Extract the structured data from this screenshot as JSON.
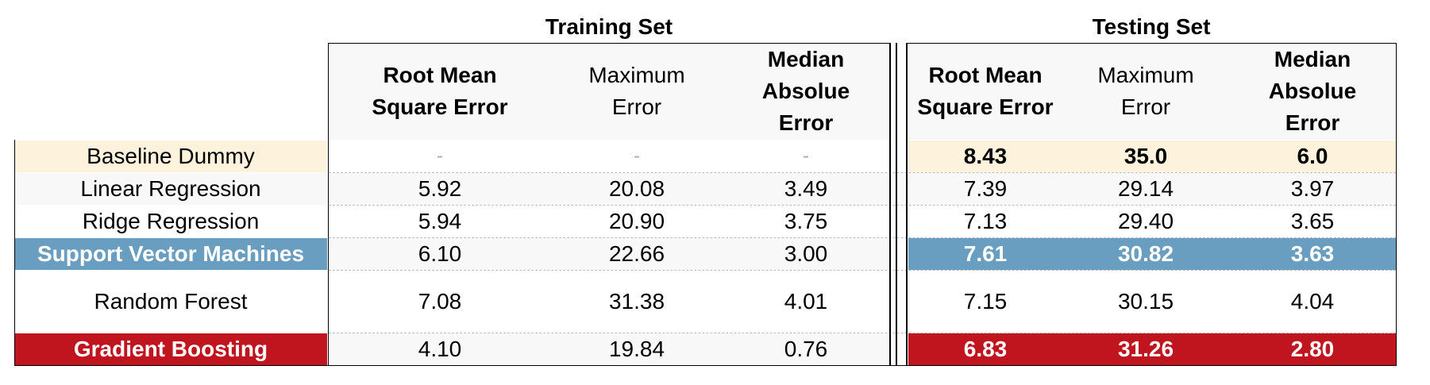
{
  "groups": {
    "training": "Training Set",
    "testing": "Testing Set"
  },
  "columns": {
    "rmse": [
      "Root Mean",
      "Square Error"
    ],
    "max": [
      "Maximum",
      "Error"
    ],
    "mae": [
      "Median",
      "Absolue",
      "Error"
    ]
  },
  "rows": [
    {
      "label": "Baseline Dummy",
      "train": [
        "-",
        "-",
        "-"
      ],
      "test": [
        "8.43",
        "35.0",
        "6.0"
      ]
    },
    {
      "label": "Linear Regression",
      "train": [
        "5.92",
        "20.08",
        "3.49"
      ],
      "test": [
        "7.39",
        "29.14",
        "3.97"
      ]
    },
    {
      "label": "Ridge Regression",
      "train": [
        "5.94",
        "20.90",
        "3.75"
      ],
      "test": [
        "7.13",
        "29.40",
        "3.65"
      ]
    },
    {
      "label": "Support Vector Machines",
      "train": [
        "6.10",
        "22.66",
        "3.00"
      ],
      "test": [
        "7.61",
        "30.82",
        "3.63"
      ]
    },
    {
      "label": "Random Forest",
      "train": [
        "7.08",
        "31.38",
        "4.01"
      ],
      "test": [
        "7.15",
        "30.15",
        "4.04"
      ]
    },
    {
      "label": "Gradient Boosting",
      "train": [
        "4.10",
        "19.84",
        "0.76"
      ],
      "test": [
        "6.83",
        "31.26",
        "2.80"
      ]
    }
  ],
  "colors": {
    "baseline_highlight": "#fdf2dc",
    "svm_highlight": "#6a9ec0",
    "gb_highlight": "#c0141e",
    "header_bg": "#f8f8f8",
    "alt_row": "#f8f8f8"
  }
}
